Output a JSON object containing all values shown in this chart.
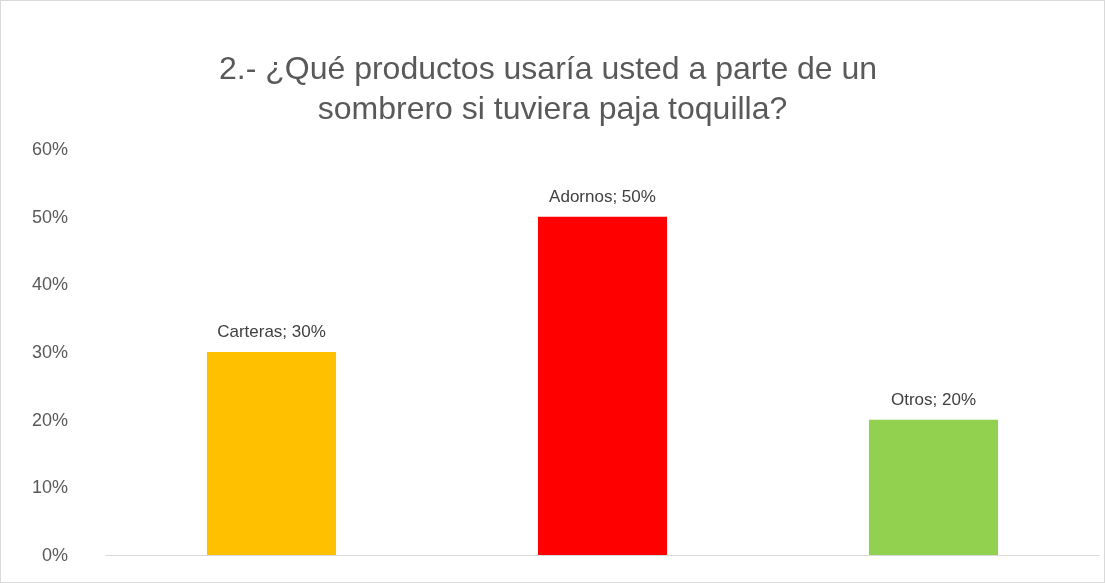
{
  "chart_data": {
    "type": "bar",
    "title": "2.- ¿Qué productos usaría usted a parte de un sombrero si tuviera paja toquilla?",
    "categories": [
      null,
      null,
      null
    ],
    "values": [
      30,
      50,
      20
    ],
    "colors": [
      "#ffc000",
      "#ff0000",
      "#92d050"
    ],
    "value_labels": [
      "Carteras; 30%",
      "Adornos; 50%",
      "Otros; 20%"
    ],
    "ylim": [
      0,
      60
    ],
    "yticks": [
      {
        "value": 0,
        "label": "0%"
      },
      {
        "value": 10,
        "label": "10%"
      },
      {
        "value": 20,
        "label": "20%"
      },
      {
        "value": 30,
        "label": "30%"
      },
      {
        "value": 40,
        "label": "40%"
      },
      {
        "value": 50,
        "label": "50%"
      },
      {
        "value": 60,
        "label": "60%"
      }
    ],
    "grid": false
  }
}
